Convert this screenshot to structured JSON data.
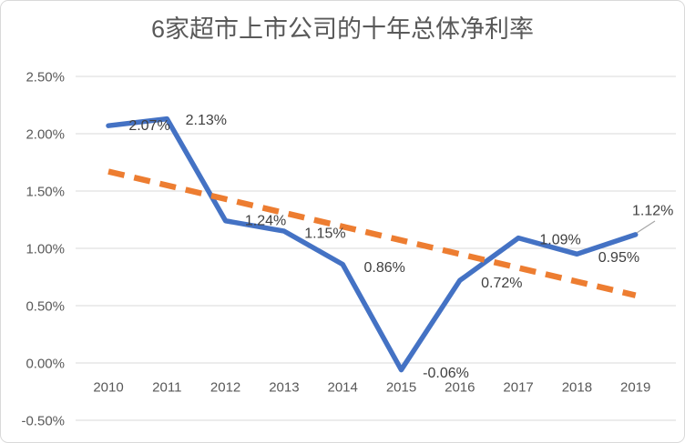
{
  "page": {
    "background": "#FFFFFF",
    "border_color": "#D9D9D9"
  },
  "chart_data": {
    "type": "line",
    "title": "6家超市上市公司的十年总体净利率",
    "categories": [
      "2010",
      "2011",
      "2012",
      "2013",
      "2014",
      "2015",
      "2016",
      "2017",
      "2018",
      "2019"
    ],
    "series": [
      {
        "role": "data",
        "style": "solid",
        "color": "#4472C4",
        "values": [
          2.07,
          2.13,
          1.24,
          1.15,
          0.86,
          -0.06,
          0.72,
          1.09,
          0.95,
          1.12
        ],
        "labels": [
          "2.07%",
          "2.13%",
          "1.24%",
          "1.15%",
          "0.86%",
          "-0.06%",
          "0.72%",
          "1.09%",
          "0.95%",
          "1.12%"
        ]
      },
      {
        "role": "trendline",
        "style": "dashed",
        "color": "#ED7D31",
        "values": [
          1.67,
          1.55,
          1.43,
          1.31,
          1.19,
          1.07,
          0.95,
          0.83,
          0.71,
          0.59
        ]
      }
    ],
    "xlabel": "",
    "ylabel": "",
    "ylim_percent": [
      -0.5,
      2.5
    ],
    "ytick_step_percent": 0.5,
    "ytick_labels": [
      "2.50%",
      "2.00%",
      "1.50%",
      "1.00%",
      "0.50%",
      "0.00%",
      "-0.50%"
    ],
    "grid": true,
    "legend": "none",
    "colors": {
      "title": "#595959",
      "axis_label": "#595959",
      "data_label": "#404040",
      "gridline": "#D9D9D9",
      "leader_line": "#A6A6A6"
    }
  }
}
